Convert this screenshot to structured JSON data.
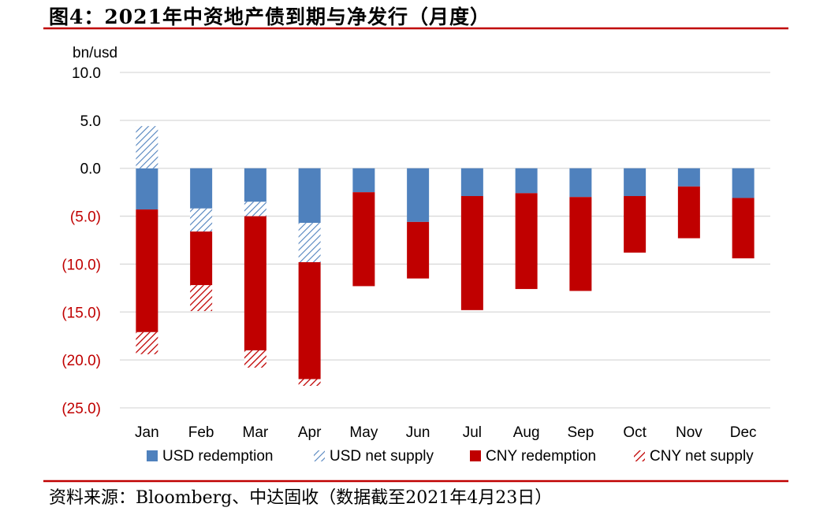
{
  "figure": {
    "title": "图4：2021年中资地产债到期与净发行（月度）",
    "source": "资料来源：Bloomberg、中达固收（数据截至2021年4月23日）"
  },
  "colors": {
    "rule": "#c00000",
    "usd_redemption": "#4f81bd",
    "usd_net_supply": "#4f81bd",
    "cny_redemption": "#c00000",
    "cny_net_supply": "#c00000",
    "negative_tick": "#c00000",
    "grid": "#d9d9d9"
  },
  "chart_data": {
    "type": "bar",
    "stacked": true,
    "ylabel": "bn/usd",
    "ylim": [
      -25,
      10
    ],
    "yticks": [
      10,
      5,
      0,
      -5,
      -10,
      -15,
      -20,
      -25
    ],
    "ytick_labels": [
      "10.0",
      "5.0",
      "0.0",
      "(5.0)",
      "(10.0)",
      "(15.0)",
      "(20.0)",
      "(25.0)"
    ],
    "grid": true,
    "legend_position": "bottom",
    "categories": [
      "Jan",
      "Feb",
      "Mar",
      "Apr",
      "May",
      "Jun",
      "Jul",
      "Aug",
      "Sep",
      "Oct",
      "Nov",
      "Dec"
    ],
    "series": [
      {
        "name": "USD redemption",
        "pattern": "solid",
        "values": [
          -4.3,
          -4.2,
          -3.5,
          -5.7,
          -2.5,
          -5.6,
          -2.9,
          -2.6,
          -3.0,
          -2.9,
          -1.9,
          -3.1
        ]
      },
      {
        "name": "USD net supply",
        "pattern": "hatch",
        "values": [
          4.4,
          -2.4,
          -1.5,
          -4.1,
          0,
          0,
          0,
          0,
          0,
          0,
          0,
          0
        ]
      },
      {
        "name": "CNY redemption",
        "pattern": "solid",
        "values": [
          -12.8,
          -5.6,
          -14.0,
          -12.2,
          -9.8,
          -5.9,
          -11.9,
          -10.0,
          -9.8,
          -5.9,
          -5.4,
          -6.3
        ]
      },
      {
        "name": "CNY net supply",
        "pattern": "hatch",
        "values": [
          -2.3,
          -2.7,
          -1.8,
          -0.7,
          0,
          0,
          0,
          0,
          0,
          0,
          0,
          0
        ]
      }
    ]
  }
}
